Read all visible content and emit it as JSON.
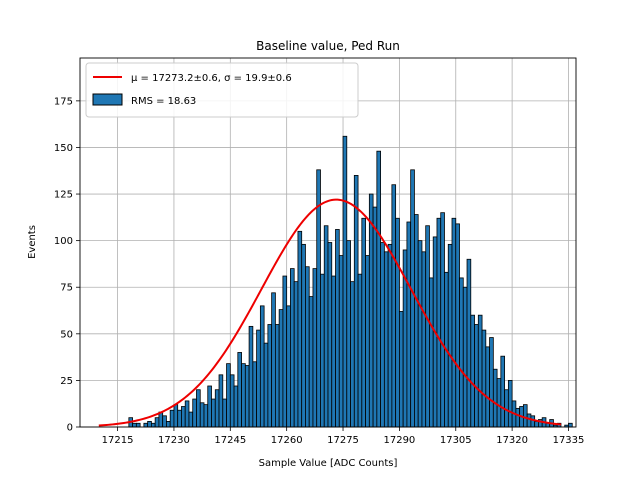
{
  "chart_data": {
    "type": "bar",
    "title": "Baseline value, Ped Run",
    "xlabel": "Sample Value [ADC Counts]",
    "ylabel": "Events",
    "xlim": [
      17205,
      17337
    ],
    "ylim": [
      0,
      198
    ],
    "xticks": [
      17215,
      17230,
      17245,
      17260,
      17275,
      17290,
      17305,
      17320,
      17335
    ],
    "yticks": [
      0,
      25,
      50,
      75,
      100,
      125,
      150,
      175
    ],
    "grid": true,
    "legend_position": "top-left",
    "legend": {
      "fit_label": "μ = 17273.2±0.6, σ = 19.9±0.6",
      "hist_label": "RMS = 18.63"
    },
    "colors": {
      "bar_fill": "#1f77b4",
      "bar_edge": "#000000",
      "fit_line": "#ee0000",
      "grid": "#b0b0b0"
    },
    "histogram": {
      "bin_start": 17213,
      "bin_width": 1,
      "counts": [
        0,
        0,
        0,
        0,
        0,
        5,
        2,
        2,
        0,
        2,
        3,
        2,
        5,
        8,
        6,
        3,
        9,
        12,
        9,
        11,
        14,
        8,
        15,
        20,
        13,
        12,
        22,
        15,
        20,
        28,
        15,
        34,
        28,
        22,
        40,
        34,
        33,
        54,
        35,
        52,
        65,
        45,
        55,
        72,
        55,
        63,
        81,
        65,
        85,
        78,
        105,
        98,
        86,
        70,
        85,
        138,
        82,
        108,
        99,
        81,
        106,
        92,
        156,
        100,
        78,
        135,
        82,
        112,
        92,
        125,
        118,
        148,
        99,
        94,
        98,
        130,
        112,
        62,
        95,
        110,
        138,
        114,
        100,
        94,
        108,
        80,
        102,
        112,
        115,
        83,
        98,
        112,
        109,
        80,
        75,
        90,
        60,
        55,
        60,
        52,
        43,
        48,
        31,
        26,
        38,
        20,
        25,
        14,
        10,
        11,
        12,
        7,
        6,
        3,
        4,
        5,
        2,
        4,
        1,
        2,
        0,
        1,
        2,
        0,
        0,
        0,
        0,
        0,
        0
      ]
    },
    "fit": {
      "type": "gaussian",
      "mu": 17273.2,
      "sigma": 19.9,
      "peak": 122,
      "x_range": [
        17210,
        17333
      ]
    }
  }
}
